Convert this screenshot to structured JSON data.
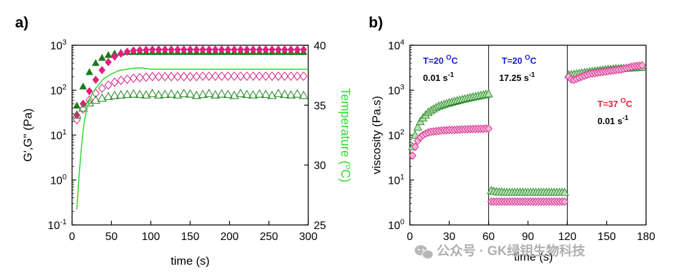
{
  "watermark": "公众号 · GK绿钥生物科技",
  "colors": {
    "green_fill": "#1a7a1a",
    "magenta_fill": "#e0217f",
    "green_open": "#2e8b2e",
    "magenta_open": "#d42d8f",
    "temperature": "#33dd33",
    "blue_label": "#1a1ad6",
    "red_label": "#e0203a",
    "green_tri_face": "#b9e2b4",
    "pink_dia_face": "#f5b3d6"
  },
  "chart_data": [
    {
      "panel_label": "a)",
      "type": "scatter",
      "xlabel": "time (s)",
      "ylabel": "G',G'' (Pa)",
      "y2label_main": "Temperature (",
      "y2label_sup": "o",
      "y2label_end": "C)",
      "xlim": [
        0,
        300
      ],
      "ylim_log": [
        0.1,
        1000
      ],
      "y2lim": [
        25,
        40
      ],
      "x_ticks": [
        "0",
        "50",
        "100",
        "150",
        "200",
        "250",
        "300"
      ],
      "y_ticks": [
        {
          "base": "10",
          "exp": "-1",
          "value": 0.1
        },
        {
          "base": "10",
          "exp": "0",
          "value": 1
        },
        {
          "base": "10",
          "exp": "1",
          "value": 10
        },
        {
          "base": "10",
          "exp": "2",
          "value": 100
        },
        {
          "base": "10",
          "exp": "3",
          "value": 1000
        }
      ],
      "y2_ticks": [
        "25",
        "30",
        "35",
        "40"
      ],
      "series": [
        {
          "marker": "filled-triangle",
          "color": "#1a7a1a",
          "x": [
            6,
            14,
            22,
            30,
            38,
            46,
            54,
            62,
            70,
            78,
            86,
            94,
            102,
            110,
            118,
            126,
            134,
            142,
            150,
            158,
            166,
            174,
            182,
            190,
            198,
            206,
            214,
            222,
            230,
            238,
            246,
            254,
            262,
            270,
            278,
            286,
            294
          ],
          "y": [
            45,
            120,
            250,
            400,
            520,
            600,
            650,
            680,
            700,
            700,
            700,
            700,
            700,
            700,
            700,
            700,
            700,
            700,
            700,
            700,
            700,
            700,
            700,
            700,
            700,
            700,
            700,
            700,
            700,
            700,
            700,
            700,
            700,
            700,
            700,
            700,
            700
          ]
        },
        {
          "marker": "filled-diamond",
          "color": "#e0217f",
          "x": [
            6,
            14,
            22,
            30,
            38,
            46,
            54,
            62,
            70,
            78,
            86,
            94,
            102,
            110,
            118,
            126,
            134,
            142,
            150,
            158,
            166,
            174,
            182,
            190,
            198,
            206,
            214,
            222,
            230,
            238,
            246,
            254,
            262,
            270,
            278,
            286,
            294
          ],
          "y": [
            28,
            50,
            95,
            170,
            280,
            420,
            560,
            650,
            720,
            760,
            780,
            790,
            800,
            800,
            800,
            800,
            800,
            800,
            800,
            800,
            800,
            800,
            800,
            800,
            800,
            800,
            800,
            800,
            800,
            800,
            800,
            800,
            800,
            800,
            800,
            800,
            800
          ]
        },
        {
          "marker": "open-diamond",
          "color": "#d42d8f",
          "x": [
            6,
            14,
            22,
            30,
            38,
            46,
            54,
            62,
            70,
            78,
            86,
            94,
            102,
            110,
            118,
            126,
            134,
            142,
            150,
            158,
            166,
            174,
            182,
            190,
            198,
            206,
            214,
            222,
            230,
            238,
            246,
            254,
            262,
            270,
            278,
            286,
            294
          ],
          "y": [
            22,
            38,
            60,
            85,
            110,
            130,
            150,
            165,
            175,
            185,
            190,
            195,
            200,
            200,
            200,
            200,
            200,
            200,
            200,
            200,
            205,
            205,
            205,
            205,
            205,
            205,
            205,
            205,
            205,
            205,
            205,
            205,
            205,
            205,
            205,
            205,
            205
          ]
        },
        {
          "marker": "open-triangle",
          "color": "#2e8b2e",
          "x": [
            6,
            14,
            22,
            30,
            38,
            46,
            54,
            62,
            70,
            78,
            86,
            94,
            102,
            110,
            118,
            126,
            134,
            142,
            150,
            158,
            166,
            174,
            182,
            190,
            198,
            206,
            214,
            222,
            230,
            238,
            246,
            254,
            262,
            270,
            278,
            286,
            294
          ],
          "y": [
            28,
            40,
            52,
            60,
            66,
            72,
            76,
            78,
            80,
            82,
            80,
            78,
            84,
            78,
            80,
            82,
            78,
            84,
            82,
            76,
            80,
            84,
            78,
            82,
            80,
            76,
            84,
            80,
            78,
            82,
            80,
            76,
            84,
            80,
            78,
            82,
            76
          ]
        },
        {
          "marker": "line",
          "axis": "y2",
          "color": "#33dd33",
          "x": [
            6,
            9,
            12,
            15,
            18,
            22,
            26,
            30,
            35,
            40,
            50,
            60,
            70,
            80,
            90,
            100,
            120,
            150,
            200,
            250,
            300
          ],
          "y": [
            26.3,
            29.2,
            31.6,
            33.4,
            34.5,
            35.4,
            36.0,
            36.4,
            36.8,
            37.2,
            37.6,
            37.9,
            38.0,
            38.1,
            38.1,
            38.0,
            38.0,
            38.0,
            38.0,
            38.0,
            38.0
          ]
        }
      ]
    },
    {
      "panel_label": "b)",
      "type": "scatter",
      "xlabel": "time (s)",
      "ylabel": "viscosity (Pa.s)",
      "xlim": [
        0,
        180
      ],
      "ylim_log": [
        1,
        10000
      ],
      "x_ticks": [
        "0",
        "30",
        "60",
        "90",
        "120",
        "150",
        "180"
      ],
      "y_ticks": [
        {
          "base": "10",
          "exp": "0",
          "value": 1
        },
        {
          "base": "10",
          "exp": "1",
          "value": 10
        },
        {
          "base": "10",
          "exp": "2",
          "value": 100
        },
        {
          "base": "10",
          "exp": "3",
          "value": 1000
        },
        {
          "base": "10",
          "exp": "4",
          "value": 10000
        }
      ],
      "dividers_x": [
        60,
        120
      ],
      "annotations": [
        {
          "temp": "T=20 ",
          "sup": "O",
          "unit": "C",
          "rate": "0.01 s",
          "rate_sup": "-1",
          "color": "#1a1ad6"
        },
        {
          "temp": "T=20 ",
          "sup": "O",
          "unit": "C",
          "rate": "17.25 s",
          "rate_sup": "-1",
          "color": "#1a1ad6"
        },
        {
          "temp": "T=37 ",
          "sup": "O",
          "unit": "C",
          "rate": "0.01 s",
          "rate_sup": "-1",
          "color": "#e0203a"
        }
      ],
      "series": [
        {
          "marker": "triangle",
          "color": "#2e8b2e",
          "face": "#b9e2b4",
          "x": [
            2,
            4,
            6,
            8,
            10,
            12,
            14,
            16,
            18,
            20,
            22,
            24,
            26,
            28,
            30,
            32,
            34,
            36,
            38,
            40,
            42,
            44,
            46,
            48,
            50,
            52,
            54,
            56,
            58,
            60,
            62,
            64,
            66,
            68,
            70,
            72,
            74,
            76,
            78,
            80,
            82,
            84,
            86,
            88,
            90,
            92,
            94,
            96,
            98,
            100,
            102,
            104,
            106,
            108,
            110,
            112,
            114,
            116,
            118,
            121,
            123,
            125,
            127,
            129,
            131,
            133,
            135,
            137,
            139,
            141,
            143,
            145,
            147,
            149,
            151,
            153,
            155,
            157,
            159,
            161,
            163,
            165,
            167,
            169,
            171,
            173,
            175,
            177
          ],
          "y": [
            55,
            100,
            150,
            200,
            240,
            280,
            320,
            350,
            380,
            410,
            440,
            460,
            480,
            500,
            520,
            540,
            560,
            580,
            600,
            620,
            640,
            660,
            680,
            700,
            720,
            740,
            760,
            780,
            800,
            830,
            5.8,
            5.6,
            5.5,
            5.4,
            5.4,
            5.3,
            5.3,
            5.3,
            5.3,
            5.3,
            5.3,
            5.3,
            5.3,
            5.3,
            5.3,
            5.3,
            5.3,
            5.3,
            5.3,
            5.3,
            5.3,
            5.3,
            5.3,
            5.3,
            5.3,
            5.3,
            5.3,
            5.3,
            5.3,
            2200,
            2200,
            2250,
            2300,
            2350,
            2400,
            2450,
            2500,
            2550,
            2600,
            2650,
            2700,
            2750,
            2800,
            2850,
            2900,
            2900,
            2950,
            3000,
            3000,
            3050,
            3050,
            3100,
            3100,
            3150,
            3150,
            3200,
            3200,
            3250
          ]
        },
        {
          "marker": "diamond",
          "color": "#d42d8f",
          "face": "#f5b3d6",
          "x": [
            2,
            4,
            6,
            8,
            10,
            12,
            14,
            16,
            18,
            20,
            22,
            24,
            26,
            28,
            30,
            32,
            34,
            36,
            38,
            40,
            42,
            44,
            46,
            48,
            50,
            52,
            54,
            56,
            58,
            60,
            62,
            64,
            66,
            68,
            70,
            72,
            74,
            76,
            78,
            80,
            82,
            84,
            86,
            88,
            90,
            92,
            94,
            96,
            98,
            100,
            102,
            104,
            106,
            108,
            110,
            112,
            114,
            116,
            118,
            121,
            123,
            125,
            127,
            129,
            131,
            133,
            135,
            137,
            139,
            141,
            143,
            145,
            147,
            149,
            151,
            153,
            155,
            157,
            159,
            161,
            163,
            165,
            167,
            169,
            171,
            173,
            175,
            177
          ],
          "y": [
            35,
            55,
            75,
            90,
            100,
            108,
            114,
            118,
            120,
            122,
            124,
            126,
            128,
            128,
            130,
            130,
            130,
            132,
            132,
            134,
            134,
            135,
            136,
            136,
            137,
            138,
            138,
            138,
            140,
            140,
            3.3,
            3.3,
            3.3,
            3.3,
            3.3,
            3.3,
            3.3,
            3.3,
            3.3,
            3.3,
            3.3,
            3.3,
            3.3,
            3.3,
            3.3,
            3.3,
            3.3,
            3.3,
            3.3,
            3.3,
            3.3,
            3.3,
            3.3,
            3.3,
            3.3,
            3.3,
            3.3,
            3.3,
            3.3,
            2000,
            1750,
            1700,
            1800,
            1900,
            2000,
            2100,
            2200,
            2300,
            2350,
            2400,
            2450,
            2500,
            2550,
            2600,
            2650,
            2700,
            2750,
            2800,
            2850,
            2900,
            3000,
            3100,
            3200,
            3300,
            3400,
            3450,
            3500,
            3550
          ]
        }
      ]
    }
  ]
}
